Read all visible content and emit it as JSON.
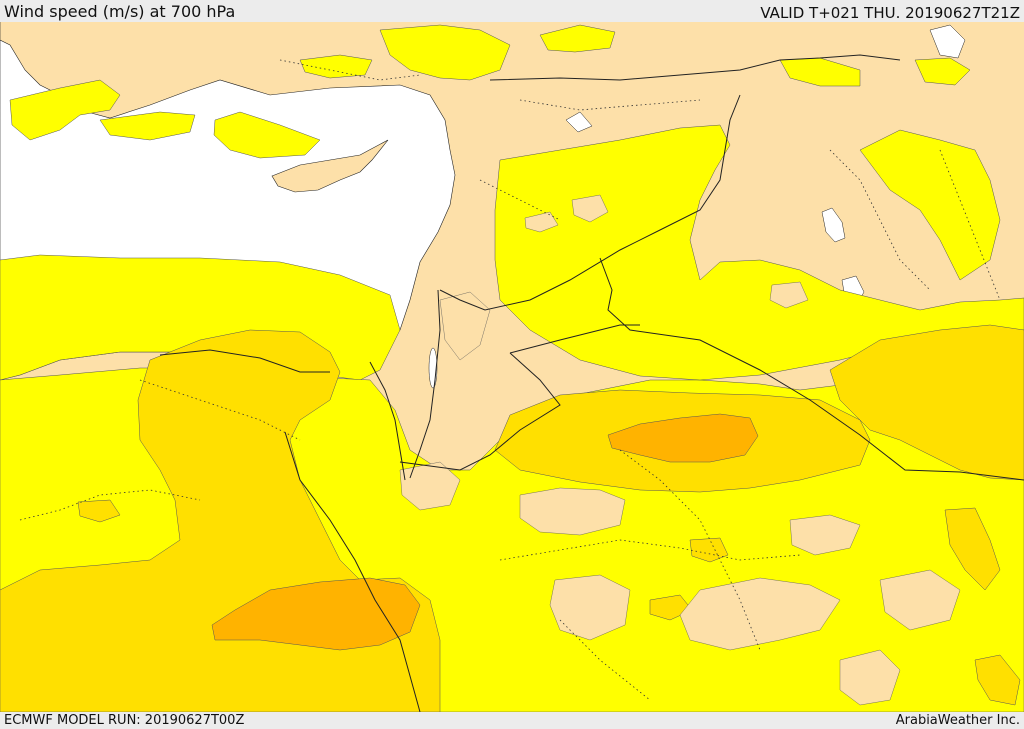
{
  "header": {
    "title": "Wind speed (m/s) at 700 hPa",
    "valid": "VALID T+021 THU. 20190627T21Z"
  },
  "footer": {
    "model_run": "ECMWF MODEL RUN: 20190627T00Z",
    "credit": "ArabiaWeather Inc."
  },
  "colors": {
    "sea": "#ffffff",
    "band_lowest": "#fde0a9",
    "band_low": "#ffff00",
    "band_mid": "#ffe000",
    "band_high": "#ffb300",
    "border": "#222222"
  }
}
